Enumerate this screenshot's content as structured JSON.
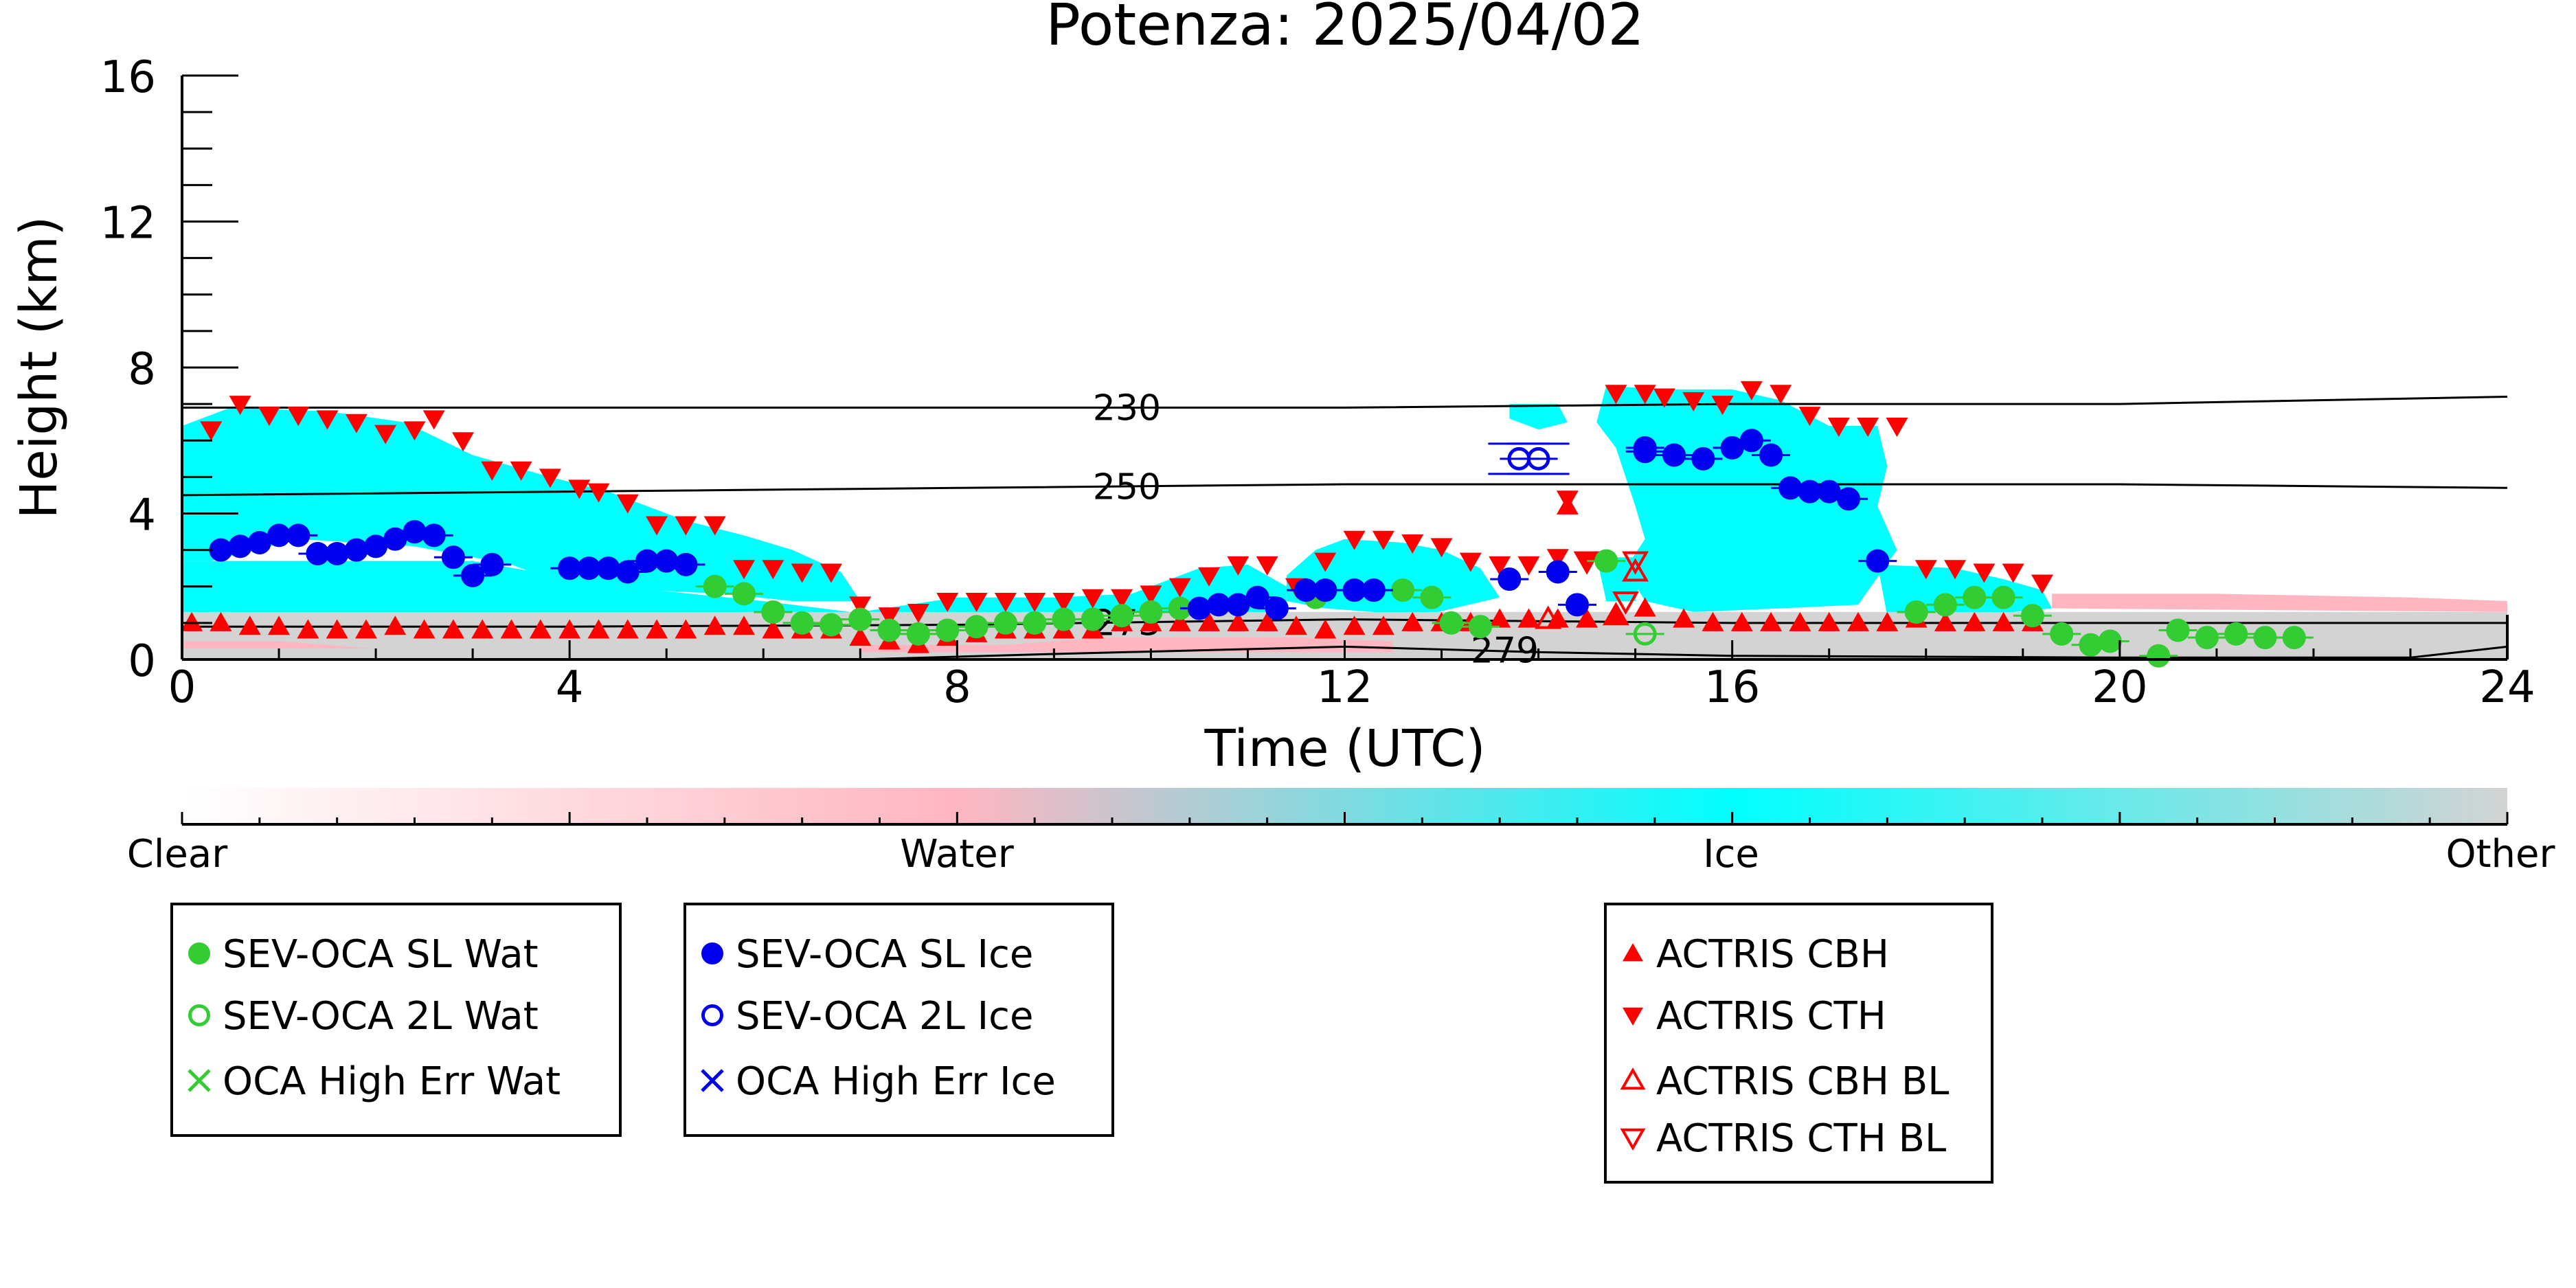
{
  "chart_data": {
    "type": "scatter",
    "title": "Potenza: 2025/04/02",
    "xlabel": "Time (UTC)",
    "ylabel": "Height (km)",
    "xlim": [
      0,
      24
    ],
    "ylim": [
      0,
      16
    ],
    "x_ticks": [
      0,
      4,
      8,
      12,
      16,
      20,
      24
    ],
    "y_ticks": [
      0,
      4,
      8,
      12,
      16
    ],
    "grid": false,
    "colorbar": {
      "labels": [
        "Clear",
        "Water",
        "Ice",
        "Other"
      ],
      "colors": [
        "#ffffff",
        "#ffb6c1",
        "#00ffff",
        "#d3d3d3"
      ]
    },
    "isotherms": [
      {
        "label": "230",
        "x": [
          0,
          4,
          8,
          12,
          16,
          20,
          24
        ],
        "y": [
          6.9,
          6.9,
          6.9,
          6.9,
          7.0,
          7.0,
          7.2
        ]
      },
      {
        "label": "250",
        "x": [
          0,
          4,
          8,
          12,
          16,
          20,
          24
        ],
        "y": [
          4.5,
          4.6,
          4.7,
          4.8,
          4.8,
          4.8,
          4.7
        ]
      },
      {
        "label": "273",
        "x": [
          0,
          4,
          8,
          12,
          16,
          20,
          24
        ],
        "y": [
          0.9,
          0.9,
          0.95,
          1.1,
          1.0,
          1.0,
          1.0
        ]
      },
      {
        "label": "279",
        "x": [
          7,
          9,
          12,
          14,
          16,
          20,
          23,
          24
        ],
        "y": [
          0.0,
          0.15,
          0.35,
          0.2,
          0.1,
          0.05,
          0.05,
          0.35
        ]
      }
    ],
    "cloud_regions": [
      {
        "class": "Ice",
        "polygon": [
          [
            0.0,
            6.4
          ],
          [
            0.5,
            6.9
          ],
          [
            1.5,
            6.8
          ],
          [
            2.3,
            6.5
          ],
          [
            3.0,
            5.6
          ],
          [
            3.8,
            5.0
          ],
          [
            4.4,
            4.6
          ],
          [
            5.2,
            3.8
          ],
          [
            5.8,
            3.4
          ],
          [
            6.3,
            3.0
          ],
          [
            6.8,
            2.4
          ],
          [
            7.0,
            1.6
          ],
          [
            6.3,
            1.6
          ],
          [
            5.6,
            1.8
          ],
          [
            4.8,
            1.9
          ],
          [
            3.9,
            2.1
          ],
          [
            3.4,
            2.6
          ],
          [
            2.4,
            3.1
          ],
          [
            1.2,
            3.3
          ],
          [
            0.3,
            2.7
          ],
          [
            0.0,
            2.7
          ]
        ]
      },
      {
        "class": "Ice",
        "polygon": [
          [
            0.0,
            2.7
          ],
          [
            3.0,
            2.7
          ],
          [
            4.5,
            2.0
          ],
          [
            6.0,
            1.6
          ],
          [
            6.9,
            1.3
          ],
          [
            6.9,
            1.0
          ],
          [
            0.0,
            1.0
          ]
        ]
      },
      {
        "class": "Ice",
        "polygon": [
          [
            7.0,
            1.3
          ],
          [
            8.0,
            1.7
          ],
          [
            9.0,
            1.7
          ],
          [
            9.8,
            1.8
          ],
          [
            10.5,
            2.5
          ],
          [
            11.0,
            2.6
          ],
          [
            11.4,
            2.0
          ],
          [
            11.4,
            1.2
          ],
          [
            9.8,
            1.2
          ],
          [
            8.5,
            1.2
          ],
          [
            7.0,
            1.2
          ]
        ]
      },
      {
        "class": "Ice",
        "polygon": [
          [
            11.4,
            2.3
          ],
          [
            11.7,
            3.0
          ],
          [
            12.0,
            3.3
          ],
          [
            12.6,
            3.2
          ],
          [
            13.0,
            3.0
          ],
          [
            13.4,
            2.5
          ],
          [
            13.6,
            1.7
          ],
          [
            12.8,
            1.2
          ],
          [
            11.8,
            1.4
          ],
          [
            11.4,
            1.6
          ]
        ]
      },
      {
        "class": "Ice",
        "polygon": [
          [
            13.7,
            7.0
          ],
          [
            14.2,
            7.0
          ],
          [
            14.3,
            6.5
          ],
          [
            14.0,
            6.3
          ],
          [
            13.7,
            6.6
          ]
        ]
      },
      {
        "class": "Ice",
        "polygon": [
          [
            14.7,
            7.5
          ],
          [
            15.3,
            7.4
          ],
          [
            16.0,
            7.4
          ],
          [
            16.5,
            7.1
          ],
          [
            17.0,
            6.4
          ],
          [
            17.5,
            6.4
          ],
          [
            17.6,
            5.3
          ],
          [
            17.5,
            4.2
          ],
          [
            17.7,
            3.0
          ],
          [
            17.3,
            1.5
          ],
          [
            16.5,
            1.4
          ],
          [
            15.6,
            1.3
          ],
          [
            15.1,
            1.6
          ],
          [
            14.9,
            2.5
          ],
          [
            15.1,
            3.3
          ],
          [
            15.0,
            4.2
          ],
          [
            14.8,
            5.8
          ],
          [
            14.6,
            6.5
          ]
        ]
      },
      {
        "class": "Ice",
        "polygon": [
          [
            17.5,
            2.6
          ],
          [
            18.3,
            2.5
          ],
          [
            18.8,
            2.2
          ],
          [
            19.2,
            1.9
          ],
          [
            19.3,
            1.4
          ],
          [
            18.5,
            1.2
          ],
          [
            17.6,
            1.2
          ]
        ]
      },
      {
        "class": "Ice",
        "polygon": [
          [
            14.6,
            2.8
          ],
          [
            15.1,
            2.8
          ],
          [
            15.0,
            1.6
          ],
          [
            14.7,
            1.6
          ]
        ]
      },
      {
        "class": "Other",
        "polygon": [
          [
            0.0,
            1.3
          ],
          [
            24.0,
            1.3
          ],
          [
            24.0,
            0.0
          ],
          [
            0.0,
            0.0
          ]
        ]
      },
      {
        "class": "Water",
        "polygon": [
          [
            19.3,
            1.8
          ],
          [
            21.0,
            1.8
          ],
          [
            23.0,
            1.7
          ],
          [
            24.0,
            1.6
          ],
          [
            24.0,
            1.3
          ],
          [
            19.3,
            1.4
          ]
        ]
      },
      {
        "class": "Water",
        "polygon": [
          [
            7.0,
            0.4
          ],
          [
            8.5,
            0.4
          ],
          [
            9.5,
            0.6
          ],
          [
            11.5,
            0.6
          ],
          [
            12.5,
            0.5
          ],
          [
            12.5,
            0.2
          ],
          [
            7.0,
            0.2
          ]
        ]
      },
      {
        "class": "Water",
        "polygon": [
          [
            0.0,
            0.5
          ],
          [
            1.0,
            0.5
          ],
          [
            2.0,
            0.3
          ],
          [
            0.0,
            0.3
          ]
        ]
      }
    ],
    "series": [
      {
        "name": "SEV-OCA SL Wat",
        "marker": "filled-circle",
        "color": "#33cc33",
        "x": [
          5.5,
          5.8,
          6.1,
          6.4,
          6.7,
          7.0,
          7.3,
          7.6,
          7.9,
          8.2,
          8.5,
          8.8,
          9.1,
          9.4,
          9.7,
          10.0,
          10.3,
          11.7,
          12.6,
          12.9,
          13.1,
          13.4,
          14.7,
          17.9,
          18.2,
          18.5,
          18.8,
          19.1,
          19.4,
          19.7,
          19.9,
          20.4,
          20.6,
          20.9,
          21.2,
          21.5,
          21.8
        ],
        "y": [
          2.0,
          1.8,
          1.3,
          1.0,
          0.95,
          1.1,
          0.8,
          0.7,
          0.8,
          0.9,
          1.0,
          1.0,
          1.1,
          1.1,
          1.2,
          1.3,
          1.4,
          1.7,
          1.9,
          1.7,
          1.0,
          0.9,
          2.7,
          1.3,
          1.5,
          1.7,
          1.7,
          1.2,
          0.7,
          0.4,
          0.5,
          0.1,
          0.8,
          0.6,
          0.7,
          0.6,
          0.6
        ]
      },
      {
        "name": "SEV-OCA 2L Wat",
        "marker": "open-circle",
        "color": "#33cc33",
        "x": [
          15.1
        ],
        "y": [
          0.7
        ]
      },
      {
        "name": "OCA High Err Wat",
        "marker": "x",
        "color": "#33cc33",
        "x": [],
        "y": []
      },
      {
        "name": "SEV-OCA SL Ice",
        "marker": "filled-circle",
        "color": "#0000ee",
        "x": [
          0.4,
          0.6,
          0.8,
          1.0,
          1.2,
          1.4,
          1.6,
          1.8,
          2.0,
          2.2,
          2.4,
          2.6,
          2.8,
          3.0,
          3.2,
          4.0,
          4.2,
          4.4,
          4.6,
          4.8,
          5.0,
          5.2,
          13.7,
          14.2,
          14.4,
          15.1,
          15.4,
          15.7,
          16.0,
          16.2,
          16.4,
          16.6,
          16.8,
          17.0,
          17.2,
          17.5,
          10.5,
          10.7,
          10.9,
          11.1,
          11.3,
          11.6,
          11.8,
          12.1,
          12.3
        ],
        "y": [
          3.0,
          3.1,
          3.2,
          3.4,
          3.4,
          2.9,
          2.9,
          3.0,
          3.1,
          3.3,
          3.5,
          3.4,
          2.8,
          2.3,
          2.6,
          2.5,
          2.5,
          2.5,
          2.4,
          2.7,
          2.7,
          2.6,
          2.2,
          2.4,
          1.5,
          5.7,
          5.6,
          5.5,
          5.8,
          6.0,
          5.6,
          4.7,
          4.6,
          4.6,
          4.4,
          2.7,
          1.4,
          1.5,
          1.5,
          1.7,
          1.4,
          1.9,
          1.9,
          1.9,
          1.9
        ]
      },
      {
        "name": "SEV-OCA 2L Ice",
        "marker": "open-circle",
        "color": "#0000ee",
        "x": [
          13.8,
          14.0,
          15.1
        ],
        "y": [
          5.5,
          5.5,
          5.8
        ]
      },
      {
        "name": "OCA High Err Ice",
        "marker": "x",
        "color": "#0000ee",
        "x": [],
        "y": []
      },
      {
        "name": "ACTRIS CBH",
        "marker": "triangle-up",
        "color": "#ff0000",
        "x": [
          0.1,
          0.4,
          0.7,
          1.0,
          1.3,
          1.6,
          1.9,
          2.2,
          2.5,
          2.8,
          3.1,
          3.4,
          3.7,
          4.0,
          4.3,
          4.6,
          4.9,
          5.2,
          5.5,
          5.8,
          6.1,
          6.4,
          6.7,
          7.0,
          7.3,
          7.6,
          7.9,
          8.2,
          8.5,
          8.8,
          9.1,
          9.4,
          9.7,
          10.0,
          10.3,
          10.6,
          10.9,
          11.2,
          11.5,
          11.8,
          12.1,
          12.4,
          12.7,
          13.0,
          13.3,
          13.6,
          13.9,
          14.2,
          14.5,
          14.8,
          15.1,
          15.5,
          15.8,
          16.1,
          16.4,
          16.7,
          17.0,
          17.3,
          17.6,
          17.9,
          18.2,
          18.5,
          18.8,
          19.1,
          14.3
        ],
        "y": [
          1.0,
          1.0,
          0.9,
          0.9,
          0.8,
          0.8,
          0.8,
          0.9,
          0.8,
          0.8,
          0.8,
          0.8,
          0.8,
          0.8,
          0.8,
          0.8,
          0.8,
          0.8,
          0.9,
          0.9,
          0.8,
          0.8,
          0.8,
          0.6,
          0.5,
          0.4,
          0.6,
          0.7,
          0.8,
          0.8,
          0.8,
          0.8,
          1.0,
          1.0,
          1.0,
          1.0,
          1.0,
          1.0,
          0.9,
          0.8,
          0.9,
          0.9,
          1.0,
          1.0,
          1.0,
          1.1,
          1.1,
          1.1,
          1.1,
          1.2,
          1.4,
          1.1,
          1.0,
          1.0,
          1.0,
          1.0,
          1.0,
          1.0,
          1.0,
          1.1,
          1.0,
          1.0,
          1.0,
          1.0,
          4.2
        ]
      },
      {
        "name": "ACTRIS CTH",
        "marker": "triangle-down",
        "color": "#ff0000",
        "x": [
          0.3,
          0.6,
          0.9,
          1.2,
          1.5,
          1.8,
          2.1,
          2.4,
          2.6,
          2.9,
          3.2,
          3.5,
          3.8,
          4.1,
          4.3,
          4.6,
          4.9,
          5.2,
          5.5,
          5.8,
          6.1,
          6.4,
          6.7,
          7.0,
          7.3,
          7.6,
          7.9,
          8.2,
          8.5,
          8.8,
          9.1,
          9.4,
          9.7,
          10.0,
          10.3,
          10.6,
          10.9,
          11.2,
          11.5,
          11.8,
          12.1,
          12.4,
          12.7,
          13.0,
          13.3,
          13.6,
          13.9,
          14.2,
          14.5,
          14.8,
          15.1,
          15.3,
          15.6,
          15.9,
          16.2,
          16.5,
          16.8,
          17.1,
          17.4,
          17.7,
          18.0,
          18.3,
          18.6,
          18.9,
          19.2,
          14.3
        ],
        "y": [
          6.3,
          7.0,
          6.7,
          6.7,
          6.6,
          6.5,
          6.2,
          6.3,
          6.6,
          6.0,
          5.2,
          5.2,
          5.0,
          4.7,
          4.6,
          4.3,
          3.7,
          3.7,
          3.7,
          2.5,
          2.5,
          2.4,
          2.4,
          1.5,
          1.2,
          1.3,
          1.6,
          1.6,
          1.6,
          1.6,
          1.6,
          1.7,
          1.7,
          1.8,
          2.0,
          2.3,
          2.6,
          2.6,
          2.0,
          2.7,
          3.3,
          3.3,
          3.2,
          3.1,
          2.7,
          2.6,
          2.6,
          2.8,
          2.7,
          7.3,
          7.3,
          7.2,
          7.1,
          7.0,
          7.4,
          7.3,
          6.7,
          6.4,
          6.4,
          6.4,
          2.5,
          2.5,
          2.4,
          2.4,
          2.1,
          4.4
        ]
      },
      {
        "name": "ACTRIS CBH BL",
        "marker": "open-triangle-up",
        "color": "#ff0000",
        "x": [
          14.1,
          14.8,
          15.0
        ],
        "y": [
          1.1,
          1.2,
          2.4
        ]
      },
      {
        "name": "ACTRIS CTH BL",
        "marker": "open-triangle-down",
        "color": "#ff0000",
        "x": [
          14.5,
          14.9,
          15.0
        ],
        "y": [
          2.7,
          1.6,
          2.7
        ]
      }
    ],
    "legend": {
      "placement": "bottom",
      "groups": [
        [
          "SEV-OCA SL Wat",
          "SEV-OCA 2L Wat",
          "OCA High Err Wat"
        ],
        [
          "SEV-OCA SL Ice",
          "SEV-OCA 2L Ice",
          "OCA High Err Ice"
        ],
        [
          "ACTRIS CBH",
          "ACTRIS CTH",
          "ACTRIS CBH BL",
          "ACTRIS CTH BL"
        ]
      ]
    }
  }
}
